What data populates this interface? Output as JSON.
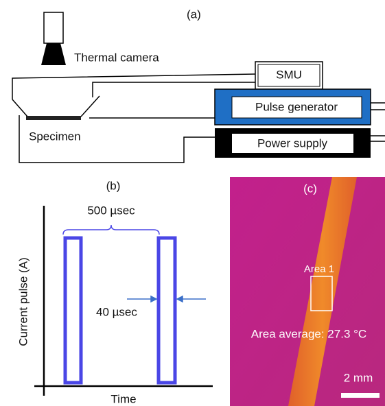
{
  "panel_a": {
    "label": "(a)",
    "camera": "Thermal camera",
    "smu": "SMU",
    "pulse_generator": "Pulse generator",
    "power_supply": "Power supply",
    "specimen": "Specimen"
  },
  "panel_b": {
    "label": "(b)",
    "period": "500 µsec",
    "width": "40 µsec",
    "y_axis": "Current pulse (A)",
    "x_axis": "Time"
  },
  "panel_c": {
    "label": "(c)",
    "area": "Area 1",
    "average": "Area average: 27.3 °C",
    "scale": "2 mm"
  }
}
